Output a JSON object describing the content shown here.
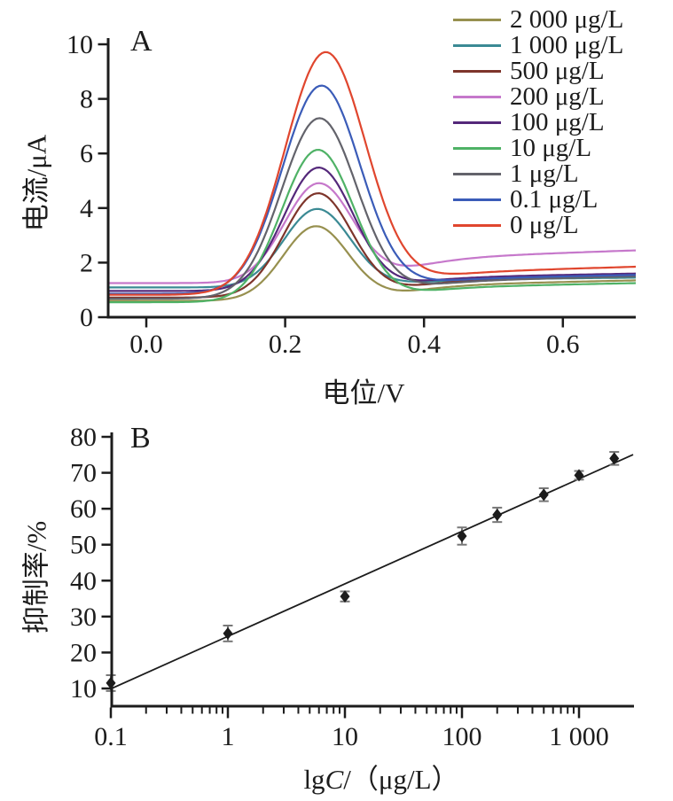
{
  "figure": {
    "background": "#ffffff",
    "axis_color": "#1c1c1c",
    "panel_a_letter": "A",
    "panel_b_letter": "B"
  },
  "chart_data": [
    {
      "type": "line",
      "panel_label": "A",
      "title": "",
      "xlabel": "电位/V",
      "ylabel": "电流/μA",
      "xlim": [
        -0.055,
        0.705
      ],
      "ylim": [
        0,
        10.23
      ],
      "xticks": {
        "values": [
          0.0,
          0.2,
          0.4,
          0.6
        ],
        "labels": [
          "0.0",
          "0.2",
          "0.4",
          "0.6"
        ]
      },
      "yticks": {
        "values": [
          0,
          2,
          4,
          6,
          8,
          10
        ],
        "labels": [
          "0",
          "2",
          "4",
          "6",
          "8",
          "10"
        ]
      },
      "grid": false,
      "legend_position": "top-right",
      "peak_center_V": 0.25,
      "series": [
        {
          "label": "2 000 μg/L",
          "color": "#97904F",
          "peak_uA": 3.3,
          "baseline_left_uA": 0.6,
          "right_end_uA": 1.35,
          "center_V": 0.244,
          "sigma_V": 0.047
        },
        {
          "label": "1 000 μg/L",
          "color": "#3B8A94",
          "peak_uA": 3.95,
          "baseline_left_uA": 1.09,
          "right_end_uA": 1.45,
          "center_V": 0.246,
          "sigma_V": 0.048
        },
        {
          "label": "500 μg/L",
          "color": "#7E352B",
          "peak_uA": 4.5,
          "baseline_left_uA": 0.72,
          "right_end_uA": 1.55,
          "center_V": 0.247,
          "sigma_V": 0.049
        },
        {
          "label": "200 μg/L",
          "color": "#C678CB",
          "peak_uA": 4.85,
          "baseline_left_uA": 1.25,
          "right_end_uA": 2.45,
          "center_V": 0.248,
          "sigma_V": 0.049
        },
        {
          "label": "100 μg/L",
          "color": "#54287A",
          "peak_uA": 5.45,
          "baseline_left_uA": 0.96,
          "right_end_uA": 1.6,
          "center_V": 0.248,
          "sigma_V": 0.05
        },
        {
          "label": "10 μg/L",
          "color": "#4FB266",
          "peak_uA": 6.1,
          "baseline_left_uA": 0.55,
          "right_end_uA": 1.25,
          "center_V": 0.247,
          "sigma_V": 0.052
        },
        {
          "label": "1 μg/L",
          "color": "#63636B",
          "peak_uA": 7.25,
          "baseline_left_uA": 0.68,
          "right_end_uA": 1.5,
          "center_V": 0.249,
          "sigma_V": 0.054
        },
        {
          "label": "0.1 μg/L",
          "color": "#3B5CB8",
          "peak_uA": 8.45,
          "baseline_left_uA": 0.86,
          "right_end_uA": 1.55,
          "center_V": 0.252,
          "sigma_V": 0.056
        },
        {
          "label": "0 μg/L",
          "color": "#E0462E",
          "peak_uA": 9.65,
          "baseline_left_uA": 0.82,
          "right_end_uA": 1.85,
          "center_V": 0.258,
          "sigma_V": 0.058
        }
      ]
    },
    {
      "type": "scatter",
      "panel_label": "B",
      "title": "",
      "xlabel": "lgC/（μg/L）",
      "xlabel_parts": {
        "prefix": "lg",
        "italic": "C",
        "suffix": "/（μg/L）"
      },
      "ylabel": "抑制率/%",
      "xscale": "log",
      "xlim": [
        0.1,
        3000
      ],
      "ylim": [
        5,
        81
      ],
      "xticks": {
        "values": [
          0.1,
          1,
          10,
          100,
          1000
        ],
        "labels": [
          "0.1",
          "1",
          "10",
          "100",
          "1 000"
        ]
      },
      "yticks": {
        "values": [
          10,
          20,
          30,
          40,
          50,
          60,
          70,
          80
        ],
        "labels": [
          "10",
          "20",
          "30",
          "40",
          "50",
          "60",
          "70",
          "80"
        ]
      },
      "grid": false,
      "marker": {
        "shape": "diamond",
        "color": "#1c1c1c"
      },
      "error_bar_color": "#787878",
      "points": [
        {
          "x": 0.1,
          "y": 11.5,
          "err": 2.2
        },
        {
          "x": 1,
          "y": 25.3,
          "err": 2.2
        },
        {
          "x": 10,
          "y": 35.6,
          "err": 1.4
        },
        {
          "x": 100,
          "y": 52.4,
          "err": 2.4
        },
        {
          "x": 200,
          "y": 58.3,
          "err": 2.0
        },
        {
          "x": 500,
          "y": 63.9,
          "err": 1.8
        },
        {
          "x": 1000,
          "y": 69.3,
          "err": 1.2
        },
        {
          "x": 2000,
          "y": 74.0,
          "err": 1.8
        }
      ],
      "fit_line": {
        "slope_per_decade": 14.6,
        "intercept_at_1ugL": 24.5,
        "x_start": 0.1,
        "x_end": 2900,
        "color": "#1c1c1c"
      }
    }
  ]
}
